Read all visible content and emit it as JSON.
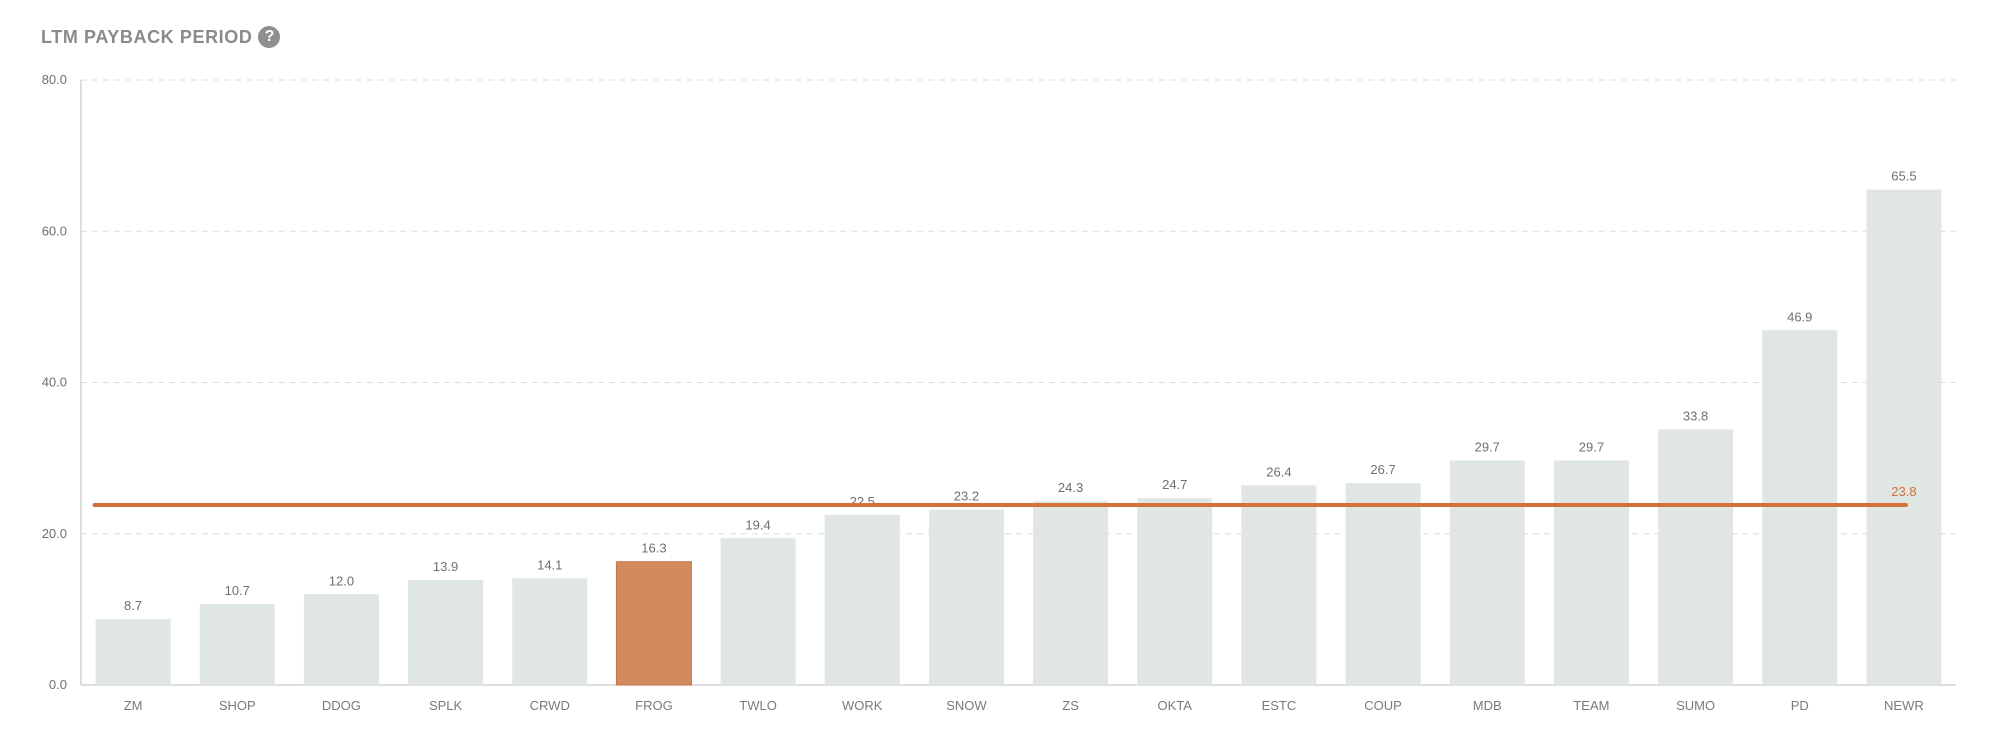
{
  "header": {
    "title": "LTM PAYBACK PERIOD",
    "help_icon": "question-icon"
  },
  "colors": {
    "bar": "#dfe6e4",
    "highlight": "#d28b5f",
    "highlight_stroke": "#c57246",
    "average_line": "#d4703a",
    "grid": "#dddddd",
    "axis": "#bdbdbd"
  },
  "chart_data": {
    "type": "bar",
    "title": "LTM PAYBACK PERIOD",
    "categories": [
      "ZM",
      "SHOP",
      "DDOG",
      "SPLK",
      "CRWD",
      "FROG",
      "TWLO",
      "WORK",
      "SNOW",
      "ZS",
      "OKTA",
      "ESTC",
      "COUP",
      "MDB",
      "TEAM",
      "SUMO",
      "PD",
      "NEWR"
    ],
    "values": [
      8.7,
      10.7,
      12.0,
      13.9,
      14.1,
      16.3,
      19.4,
      22.5,
      23.2,
      24.3,
      24.7,
      26.4,
      26.7,
      29.7,
      29.7,
      33.8,
      46.9,
      65.5
    ],
    "value_labels": [
      "8.7",
      "10.7",
      "12.0",
      "13.9",
      "14.1",
      "16.3",
      "19.4",
      "22.5",
      "23.2",
      "24.3",
      "24.7",
      "26.4",
      "26.7",
      "29.7",
      "29.7",
      "33.8",
      "46.9",
      "65.5"
    ],
    "highlight_category": "FROG",
    "reference_line": {
      "value": 23.8,
      "label": "23.8"
    },
    "ylim": [
      0,
      80
    ],
    "yticks": [
      0,
      20,
      40,
      60,
      80
    ],
    "ytick_labels": [
      "0.0",
      "20.0",
      "40.0",
      "60.0",
      "80.0"
    ],
    "grid": true,
    "legend": "none",
    "xlabel": "",
    "ylabel": ""
  }
}
